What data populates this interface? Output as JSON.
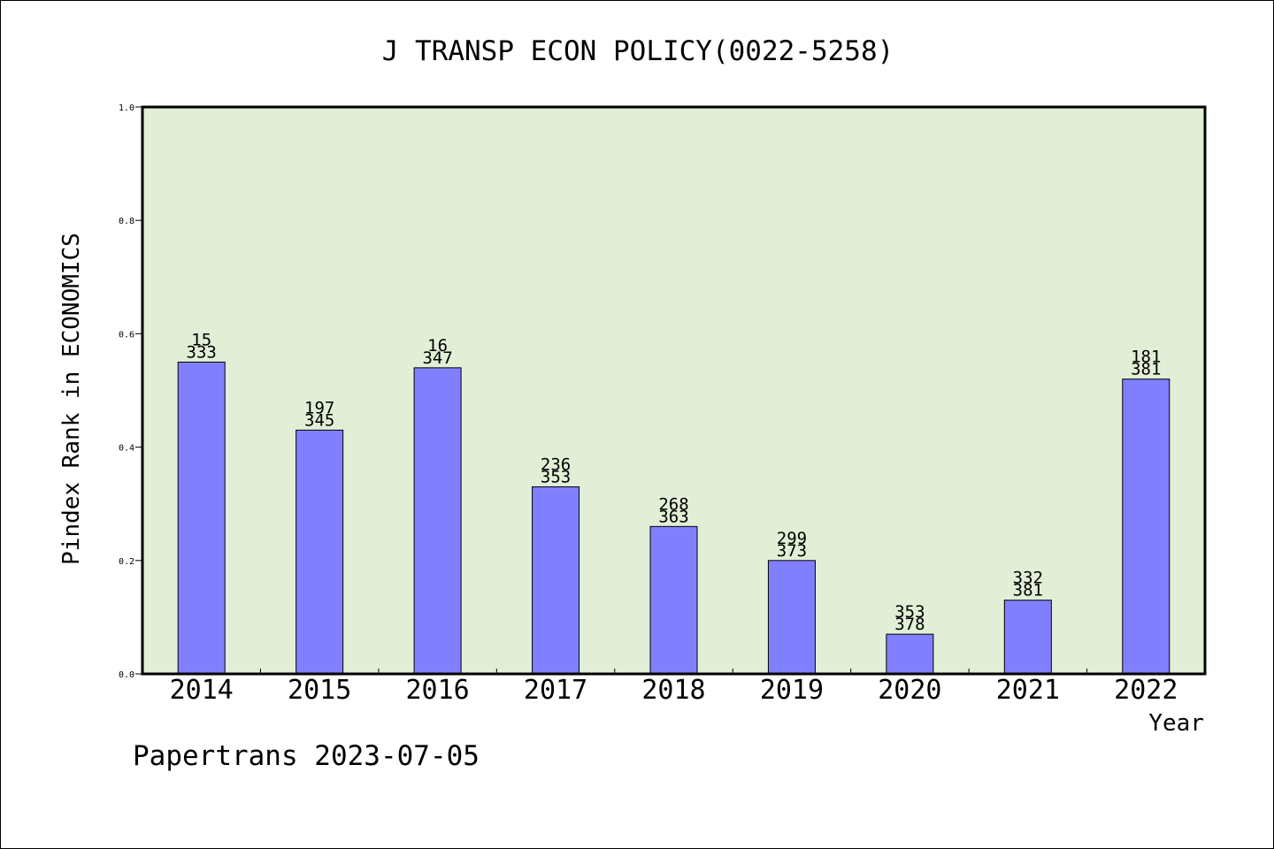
{
  "chart_data": {
    "type": "bar",
    "title": "J TRANSP ECON POLICY(0022-5258)",
    "xlabel": "Year",
    "ylabel": "Pindex Rank in ECONOMICS",
    "ylim": [
      0,
      1.0
    ],
    "yticks": [
      "0.0",
      "0.2",
      "0.4",
      "0.6",
      "0.8",
      "1.0"
    ],
    "categories": [
      "2014",
      "2015",
      "2016",
      "2017",
      "2018",
      "2019",
      "2020",
      "2021",
      "2022"
    ],
    "values": [
      0.55,
      0.43,
      0.54,
      0.33,
      0.26,
      0.2,
      0.07,
      0.13,
      0.52
    ],
    "label_top": [
      "15",
      "197",
      "16",
      "236",
      "268",
      "299",
      "353",
      "332",
      "181"
    ],
    "label_bottom": [
      "333",
      "345",
      "347",
      "353",
      "363",
      "373",
      "378",
      "381",
      "381"
    ],
    "grid": false,
    "colors": {
      "plot_background": "#e2efd6",
      "bar_fill": "#8080ff",
      "bar_stroke": "#000000"
    }
  },
  "footer": "Papertrans 2023-07-05"
}
